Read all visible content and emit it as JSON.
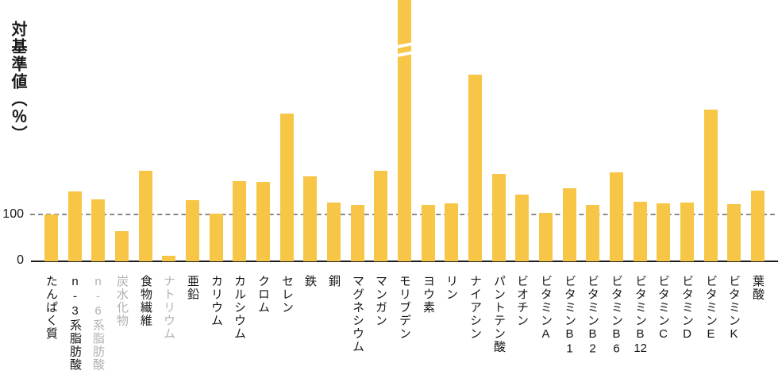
{
  "chart_data": {
    "type": "bar",
    "title": "",
    "ylabel": "対基準値（％）",
    "xlabel": "",
    "ytick_labels": [
      "0",
      "100"
    ],
    "ylim": [
      0,
      566
    ],
    "reference_line": {
      "value": 100,
      "style": "dashed",
      "color": "#8a8a8a"
    },
    "bar_color": "#f7c647",
    "legend": "none",
    "grid": "single dashed line at y=100 only",
    "note": "values are percent of reference (対基準値%), estimated from bar heights; モリブデン bar is broken (off scale)",
    "items": [
      {
        "label": "たんぱく質",
        "value": 102,
        "muted": false,
        "broken": false
      },
      {
        "label": "n-3系脂肪酸",
        "value": 151,
        "muted": false,
        "broken": false
      },
      {
        "label": "n-6系脂肪酸",
        "value": 134,
        "muted": true,
        "broken": false
      },
      {
        "label": "炭水化物",
        "value": 65,
        "muted": true,
        "broken": false
      },
      {
        "label": "食物繊維",
        "value": 197,
        "muted": false,
        "broken": false
      },
      {
        "label": "ナトリウム",
        "value": 12,
        "muted": true,
        "broken": false
      },
      {
        "label": "亜鉛",
        "value": 133,
        "muted": false,
        "broken": false
      },
      {
        "label": "カリウム",
        "value": 104,
        "muted": false,
        "broken": false
      },
      {
        "label": "カルシウム",
        "value": 174,
        "muted": false,
        "broken": false
      },
      {
        "label": "クロム",
        "value": 172,
        "muted": false,
        "broken": false
      },
      {
        "label": "セレン",
        "value": 320,
        "muted": false,
        "broken": false
      },
      {
        "label": "鉄",
        "value": 185,
        "muted": false,
        "broken": false
      },
      {
        "label": "銅",
        "value": 128,
        "muted": false,
        "broken": false
      },
      {
        "label": "マグネシウム",
        "value": 123,
        "muted": false,
        "broken": false
      },
      {
        "label": "マンガン",
        "value": 197,
        "muted": false,
        "broken": false
      },
      {
        "label": "モリブデン",
        "value": null,
        "muted": false,
        "broken": true
      },
      {
        "label": "ヨウ素",
        "value": 122,
        "muted": false,
        "broken": false
      },
      {
        "label": "リン",
        "value": 125,
        "muted": false,
        "broken": false
      },
      {
        "label": "ナイアシン",
        "value": 405,
        "muted": false,
        "broken": false
      },
      {
        "label": "パントテン酸",
        "value": 189,
        "muted": false,
        "broken": false
      },
      {
        "label": "ビオチン",
        "value": 144,
        "muted": false,
        "broken": false
      },
      {
        "label": "ビタミンA",
        "value": 105,
        "muted": false,
        "broken": false
      },
      {
        "label": "ビタミンB1",
        "value": 159,
        "muted": false,
        "broken": false
      },
      {
        "label": "ビタミンB2",
        "value": 122,
        "muted": false,
        "broken": false
      },
      {
        "label": "ビタミンB6",
        "value": 193,
        "muted": false,
        "broken": false
      },
      {
        "label": "ビタミンB12",
        "value": 130,
        "muted": false,
        "broken": false
      },
      {
        "label": "ビタミンC",
        "value": 125,
        "muted": false,
        "broken": false
      },
      {
        "label": "ビタミンD",
        "value": 127,
        "muted": false,
        "broken": false
      },
      {
        "label": "ビタミンE",
        "value": 329,
        "muted": false,
        "broken": false
      },
      {
        "label": "ビタミンK",
        "value": 124,
        "muted": false,
        "broken": false
      },
      {
        "label": "葉酸",
        "value": 154,
        "muted": false,
        "broken": false
      }
    ]
  }
}
